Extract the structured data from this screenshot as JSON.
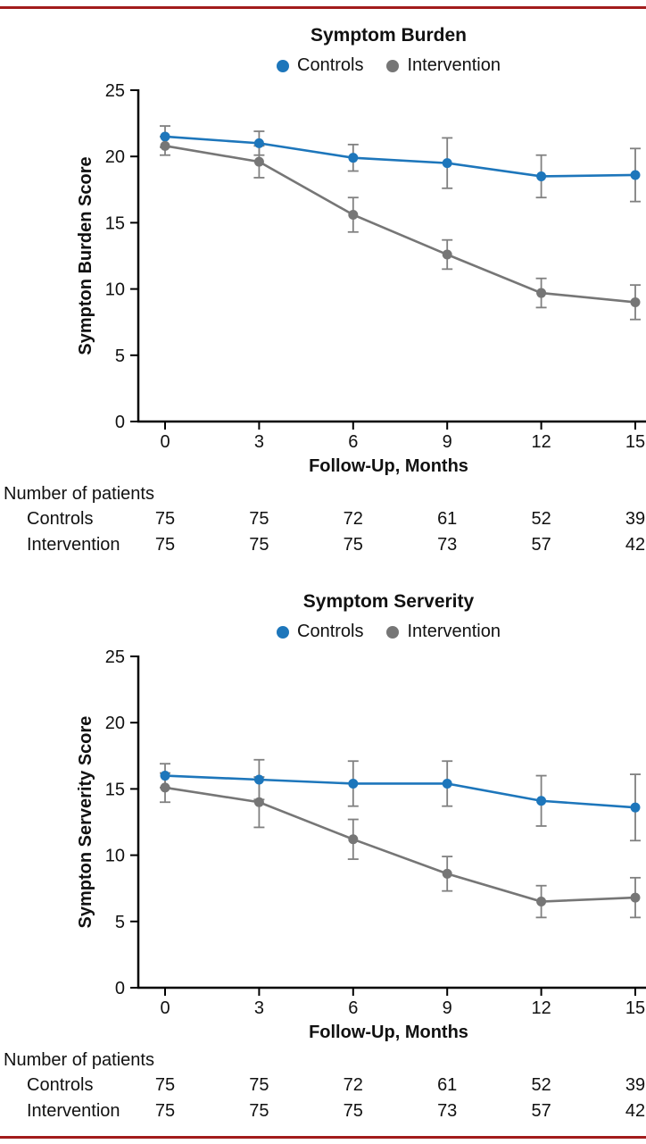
{
  "page": {
    "rule_color": "#a21c1c",
    "background": "#ffffff"
  },
  "colors": {
    "controls": "#1d76bb",
    "intervention": "#767676",
    "error_bar": "#808080",
    "axis": "#000000"
  },
  "chart_data": [
    {
      "type": "line",
      "title": "Symptom Burden",
      "xlabel": "Follow-Up, Months",
      "ylabel": "Sympton Burden Score",
      "x": [
        0,
        3,
        6,
        9,
        12,
        15
      ],
      "ylim": [
        0,
        25
      ],
      "yticks": [
        0,
        5,
        10,
        15,
        20,
        25
      ],
      "grid": false,
      "legend_position": "top-center",
      "series": [
        {
          "name": "Controls",
          "color_key": "controls",
          "values": [
            21.5,
            21.0,
            19.9,
            19.5,
            18.5,
            18.6
          ],
          "errors": [
            0.8,
            0.9,
            1.0,
            1.9,
            1.6,
            2.0
          ]
        },
        {
          "name": "Intervention",
          "color_key": "intervention",
          "values": [
            20.8,
            19.6,
            15.6,
            12.6,
            9.7,
            9.0
          ],
          "errors": [
            0.7,
            1.2,
            1.3,
            1.1,
            1.1,
            1.3
          ]
        }
      ],
      "patients": {
        "heading": "Number of patients",
        "rows": [
          {
            "label": "Controls",
            "counts": [
              75,
              75,
              72,
              61,
              52,
              39
            ]
          },
          {
            "label": "Intervention",
            "counts": [
              75,
              75,
              75,
              73,
              57,
              42
            ]
          }
        ]
      }
    },
    {
      "type": "line",
      "title": "Symptom Serverity",
      "xlabel": "Follow-Up, Months",
      "ylabel": "Sympton Serverity Score",
      "x": [
        0,
        3,
        6,
        9,
        12,
        15
      ],
      "ylim": [
        0,
        25
      ],
      "yticks": [
        0,
        5,
        10,
        15,
        20,
        25
      ],
      "grid": false,
      "legend_position": "top-center",
      "series": [
        {
          "name": "Controls",
          "color_key": "controls",
          "values": [
            16.0,
            15.7,
            15.4,
            15.4,
            14.1,
            13.6
          ],
          "errors": [
            0.9,
            1.5,
            1.7,
            1.7,
            1.9,
            2.5
          ]
        },
        {
          "name": "Intervention",
          "color_key": "intervention",
          "values": [
            15.1,
            14.0,
            11.2,
            8.6,
            6.5,
            6.8
          ],
          "errors": [
            1.1,
            1.9,
            1.5,
            1.3,
            1.2,
            1.5
          ]
        }
      ],
      "patients": {
        "heading": "Number of patients",
        "rows": [
          {
            "label": "Controls",
            "counts": [
              75,
              75,
              72,
              61,
              52,
              39
            ]
          },
          {
            "label": "Intervention",
            "counts": [
              75,
              75,
              75,
              73,
              57,
              42
            ]
          }
        ]
      }
    }
  ]
}
